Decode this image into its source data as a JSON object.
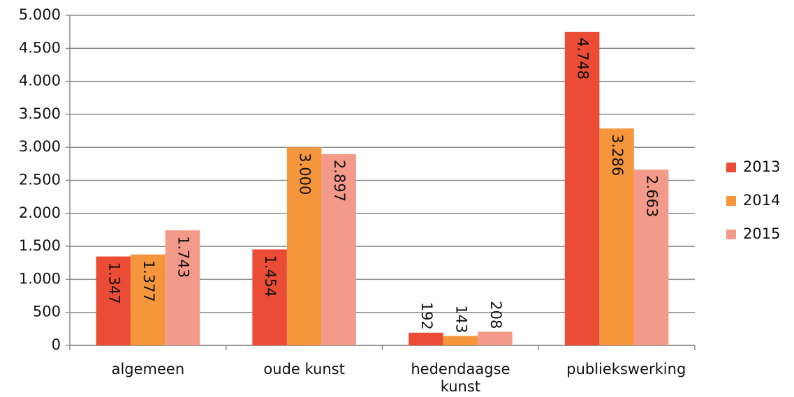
{
  "chart_data": {
    "type": "bar",
    "categories": [
      "algemeen",
      "oude kunst",
      "hedendaagse kunst",
      "publiekswerking"
    ],
    "series": [
      {
        "name": "2013",
        "color": "#ea4c36",
        "values": [
          1347,
          1454,
          192,
          4748
        ],
        "value_labels": [
          "1.347",
          "1.454",
          "192",
          "4.748"
        ]
      },
      {
        "name": "2014",
        "color": "#f5963c",
        "values": [
          1377,
          3000,
          143,
          3286
        ],
        "value_labels": [
          "1.377",
          "3.000",
          "143",
          "3.286"
        ]
      },
      {
        "name": "2015",
        "color": "#f49a8a",
        "values": [
          1743,
          2897,
          208,
          2663
        ],
        "value_labels": [
          "1.743",
          "2.897",
          "208",
          "2.663"
        ]
      }
    ],
    "ylim": [
      0,
      5000
    ],
    "yticks": [
      0,
      500,
      {
        "value": 1000,
        "label": "1.000"
      },
      {
        "value": 1500,
        "label": "1.500"
      },
      {
        "value": 2000,
        "label": "2.000"
      },
      {
        "value": 2500,
        "label": "2.500"
      },
      {
        "value": 3000,
        "label": "3.000"
      },
      {
        "value": 3500,
        "label": "3.500"
      },
      {
        "value": 4000,
        "label": "4.000"
      },
      {
        "value": 4500,
        "label": "4.500"
      },
      {
        "value": 5000,
        "label": "5.000"
      }
    ],
    "grid": true,
    "legend": "right"
  }
}
